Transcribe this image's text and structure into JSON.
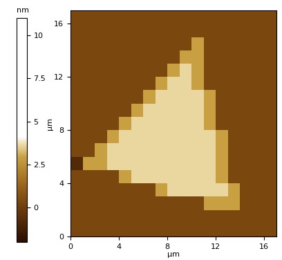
{
  "chart_data": {
    "type": "heatmap",
    "xlabel": "µm",
    "ylabel": "µm",
    "x": [
      0.5,
      1.5,
      2.5,
      3.5,
      4.5,
      5.5,
      6.5,
      7.5,
      8.5,
      9.5,
      10.5,
      11.5,
      12.5,
      13.5,
      14.5,
      15.5,
      16.5
    ],
    "y": [
      0.5,
      1.5,
      2.5,
      3.5,
      4.5,
      5.5,
      6.5,
      7.5,
      8.5,
      9.5,
      10.5,
      11.5,
      12.5,
      13.5,
      14.5,
      15.5,
      16.5
    ],
    "cells": [
      [
        0.3,
        0.3,
        0.3,
        0.3,
        0.3,
        0.3,
        0.3,
        0.3,
        0.3,
        0.3,
        0.3,
        0.3,
        0.3,
        0.3,
        0.3,
        0.3,
        0.3
      ],
      [
        0.3,
        0.3,
        0.3,
        0.3,
        0.3,
        0.3,
        0.3,
        0.3,
        0.3,
        0.3,
        0.3,
        0.3,
        0.3,
        0.3,
        0.3,
        0.3,
        0.3
      ],
      [
        0.3,
        0.3,
        0.3,
        0.3,
        0.3,
        0.3,
        0.3,
        0.3,
        0.3,
        0.3,
        0.3,
        2.9,
        2.9,
        2.9,
        0.3,
        0.3,
        0.3
      ],
      [
        0.3,
        0.3,
        0.3,
        0.3,
        0.3,
        0.3,
        0.3,
        2.9,
        3.6,
        3.6,
        3.6,
        3.6,
        3.6,
        2.9,
        0.3,
        0.3,
        0.3
      ],
      [
        0.3,
        0.3,
        0.3,
        0.3,
        2.9,
        3.6,
        3.6,
        3.6,
        3.6,
        3.6,
        3.6,
        3.6,
        2.9,
        0.3,
        0.3,
        0.3,
        0.3
      ],
      [
        -0.8,
        2.9,
        2.9,
        3.6,
        3.6,
        3.6,
        3.6,
        3.6,
        3.6,
        3.6,
        3.6,
        3.6,
        2.9,
        0.3,
        0.3,
        0.3,
        0.3
      ],
      [
        0.3,
        0.3,
        2.9,
        3.6,
        3.6,
        3.6,
        3.6,
        3.6,
        3.6,
        3.6,
        3.6,
        3.6,
        2.9,
        0.3,
        0.3,
        0.3,
        0.3
      ],
      [
        0.3,
        0.3,
        0.3,
        2.9,
        3.6,
        3.6,
        3.6,
        3.6,
        3.6,
        3.6,
        3.6,
        3.6,
        2.9,
        0.3,
        0.3,
        0.3,
        0.3
      ],
      [
        0.3,
        0.3,
        0.3,
        0.3,
        2.9,
        3.6,
        3.6,
        3.6,
        3.6,
        3.6,
        3.6,
        2.9,
        0.3,
        0.3,
        0.3,
        0.3,
        0.3
      ],
      [
        0.3,
        0.3,
        0.3,
        0.3,
        0.3,
        2.9,
        3.6,
        3.6,
        3.6,
        3.6,
        3.6,
        2.9,
        0.3,
        0.3,
        0.3,
        0.3,
        0.3
      ],
      [
        0.3,
        0.3,
        0.3,
        0.3,
        0.3,
        0.3,
        2.9,
        3.6,
        3.6,
        3.6,
        3.6,
        2.9,
        0.3,
        0.3,
        0.3,
        0.3,
        0.3
      ],
      [
        0.3,
        0.3,
        0.3,
        0.3,
        0.3,
        0.3,
        0.3,
        2.9,
        3.6,
        3.6,
        2.9,
        0.3,
        0.3,
        0.3,
        0.3,
        0.3,
        0.3
      ],
      [
        0.3,
        0.3,
        0.3,
        0.3,
        0.3,
        0.3,
        0.3,
        0.3,
        2.9,
        3.6,
        2.9,
        0.3,
        0.3,
        0.3,
        0.3,
        0.3,
        0.3
      ],
      [
        0.3,
        0.3,
        0.3,
        0.3,
        0.3,
        0.3,
        0.3,
        0.3,
        0.3,
        2.9,
        2.9,
        0.3,
        0.3,
        0.3,
        0.3,
        0.3,
        0.3
      ],
      [
        0.3,
        0.3,
        0.3,
        0.3,
        0.3,
        0.3,
        0.3,
        0.3,
        0.3,
        0.3,
        2.9,
        0.3,
        0.3,
        0.3,
        0.3,
        0.3,
        0.3
      ],
      [
        0.3,
        0.3,
        0.3,
        0.3,
        0.3,
        0.3,
        0.3,
        0.3,
        0.3,
        0.3,
        0.3,
        0.3,
        0.3,
        0.3,
        0.3,
        0.3,
        0.3
      ],
      [
        0.3,
        0.3,
        0.3,
        0.3,
        0.3,
        0.3,
        0.3,
        0.3,
        0.3,
        0.3,
        0.3,
        0.3,
        0.3,
        0.3,
        0.3,
        0.3,
        0.3
      ]
    ],
    "xlim": [
      0,
      17
    ],
    "ylim": [
      0,
      17
    ],
    "xticks": [
      0,
      4,
      8,
      12,
      16
    ],
    "yticks": [
      0,
      4,
      8,
      12,
      16
    ],
    "colorbar": {
      "label": "nm",
      "range": [
        -2,
        11
      ],
      "ticks": [
        0,
        2.5,
        5,
        7.5,
        10
      ]
    }
  }
}
